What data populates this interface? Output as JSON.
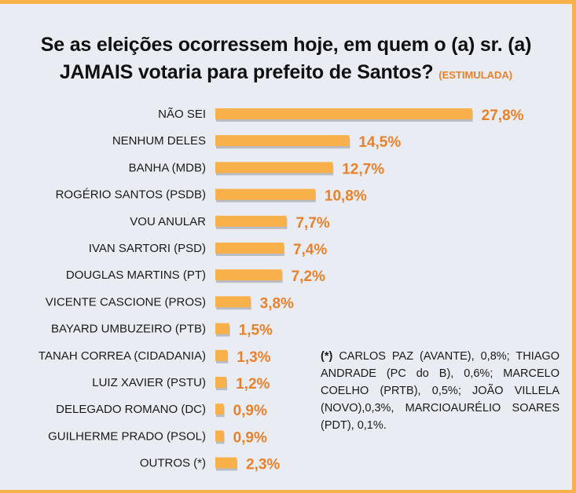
{
  "title": {
    "line1": "Se as eleições ocorressem hoje, em quem o (a) sr. (a)",
    "line2": "JAMAIS votaria para prefeito de Santos?",
    "tag": "(ESTIMULADA)"
  },
  "chart_data": {
    "type": "bar",
    "orientation": "horizontal",
    "categories": [
      "NÃO SEI",
      "NENHUM DELES",
      "BANHA (MDB)",
      "ROGÉRIO SANTOS (PSDB)",
      "VOU ANULAR",
      "IVAN SARTORI (PSD)",
      "DOUGLAS MARTINS (PT)",
      "VICENTE CASCIONE (PROS)",
      "BAYARD UMBUZEIRO (PTB)",
      "TANAH CORREA (CIDADANIA)",
      "LUIZ XAVIER (PSTU)",
      "DELEGADO ROMANO (DC)",
      "GUILHERME PRADO (PSOL)",
      "OUTROS (*)"
    ],
    "values": [
      27.8,
      14.5,
      12.7,
      10.8,
      7.7,
      7.4,
      7.2,
      3.8,
      1.5,
      1.3,
      1.2,
      0.9,
      0.9,
      2.3
    ],
    "value_labels": [
      "27,8%",
      "14,5%",
      "12,7%",
      "10,8%",
      "7,7%",
      "7,4%",
      "7,2%",
      "3,8%",
      "1,5%",
      "1,3%",
      "1,2%",
      "0,9%",
      "0,9%",
      "2,3%"
    ],
    "bar_color": "#f8b04a",
    "label_color": "#e8812a",
    "grid": false
  },
  "footnote": {
    "mark": "(*)",
    "text": "CARLOS PAZ (AVANTE), 0,8%; THIAGO ANDRADE (PC do B), 0,6%; MARCELO COELHO (PRTB), 0,5%; JOÃO VILLELA (NOVO),0,3%, MARCIOAURÉLIO SOARES (PDT), 0,1%."
  }
}
